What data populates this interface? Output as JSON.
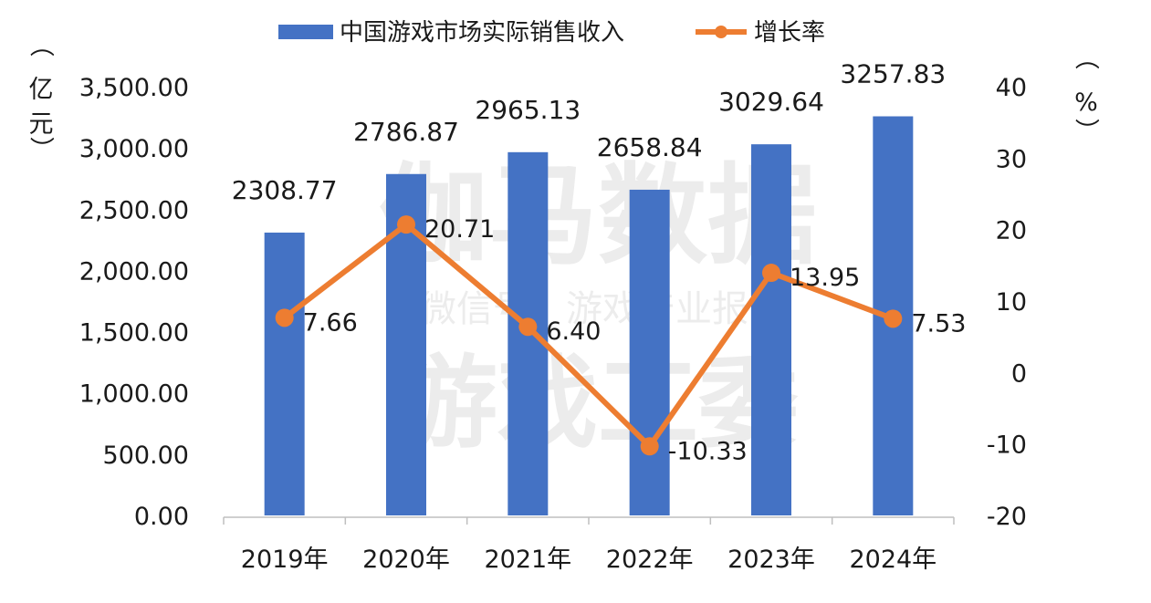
{
  "chart_data": {
    "type": "bar+line",
    "categories": [
      "2019年",
      "2020年",
      "2021年",
      "2022年",
      "2023年",
      "2024年"
    ],
    "series": [
      {
        "name": "中国游戏市场实际销售收入",
        "type": "bar",
        "axis": "left",
        "values": [
          2308.77,
          2786.87,
          2965.13,
          2658.84,
          3029.64,
          3257.83
        ],
        "labels": [
          "2308.77",
          "2786.87",
          "2965.13",
          "2658.84",
          "3029.64",
          "3257.83"
        ],
        "color": "#4472C4"
      },
      {
        "name": "增长率",
        "type": "line",
        "axis": "right",
        "values": [
          7.66,
          20.71,
          6.4,
          -10.33,
          13.95,
          7.53
        ],
        "labels": [
          "7.66",
          "20.71",
          "6.40",
          "-10.33",
          "13.95",
          "7.53"
        ],
        "color": "#ED7D31"
      }
    ],
    "y_left": {
      "range": [
        0,
        3500
      ],
      "ticks": [
        "0.00",
        "500.00",
        "1,000.00",
        "1,500.00",
        "2,000.00",
        "2,500.00",
        "3,000.00",
        "3,500.00"
      ],
      "unit_chars": [
        "（",
        "亿",
        "元",
        "）"
      ]
    },
    "y_right": {
      "range": [
        -20,
        40
      ],
      "ticks": [
        "-20",
        "-10",
        "0",
        "10",
        "20",
        "30",
        "40"
      ],
      "unit_chars": [
        "（",
        "%",
        "）"
      ]
    },
    "legend": {
      "placement": "top-center",
      "items": [
        "中国游戏市场实际销售收入",
        "增长率"
      ]
    },
    "grid": false
  },
  "watermark": {
    "line1": "伽马数据",
    "line2": "微信号：游戏产业报告",
    "line3": "游戏工委"
  }
}
